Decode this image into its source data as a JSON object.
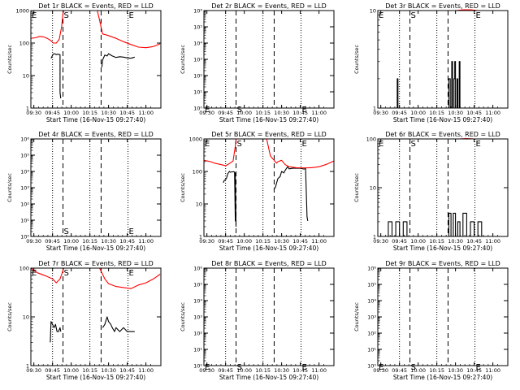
{
  "figure": {
    "start_time": "Start Time (16-Nov-15 09:27:40)",
    "ylabel": "Counts/sec",
    "x_ticks": [
      "09:30",
      "09:45",
      "10:00",
      "10:15",
      "10:30",
      "10:45",
      "11:00"
    ],
    "x_tick_hours": [
      9.5,
      9.75,
      10.0,
      10.25,
      10.5,
      10.75,
      11.0
    ],
    "x_range": [
      9.46,
      11.2
    ],
    "dotted_lines_hours": [
      9.75,
      10.25,
      10.76
    ],
    "dashed_lines_hours": [
      9.89,
      10.4
    ],
    "colors": {
      "events": "#000000",
      "lld": "#ff0000",
      "axes": "#000000"
    }
  },
  "chart_data": [
    {
      "id": "det-1r",
      "type": "line",
      "title": "Det 1r BLACK = Events, RED = LLD",
      "xlabel": "Start Time (16-Nov-15 09:27:40)",
      "ylabel": "Counts/sec",
      "yscale": "log",
      "ylim": [
        1,
        1000
      ],
      "y_ticks": [
        "1",
        "10",
        "100",
        "1000"
      ],
      "markers": [
        {
          "label": "E",
          "x": 9.46,
          "y": 1000
        },
        {
          "label": "S",
          "x": 9.89,
          "y": 1000
        },
        {
          "label": "E",
          "x": 10.76,
          "y": 1000
        }
      ],
      "series": [
        {
          "name": "Events",
          "color": "#000000",
          "x": [
            9.73,
            9.75,
            9.76,
            9.78,
            9.8,
            9.82,
            9.83,
            9.85,
            9.85,
            9.86
          ],
          "y": [
            34,
            42,
            46,
            47,
            44,
            46,
            45,
            44,
            3,
            2
          ]
        },
        {
          "name": "Events",
          "color": "#000000",
          "x": [
            10.41,
            10.42,
            10.45,
            10.48,
            10.5,
            10.55,
            10.6,
            10.65,
            10.7,
            10.75,
            10.8,
            10.85
          ],
          "y": [
            18,
            30,
            43,
            40,
            47,
            40,
            36,
            38,
            37,
            35,
            34,
            37
          ]
        },
        {
          "name": "LLD",
          "color": "#ff0000",
          "x": [
            9.46,
            9.52,
            9.58,
            9.63,
            9.68,
            9.73,
            9.76,
            9.8,
            9.84,
            9.87,
            9.89,
            9.9
          ],
          "y": [
            140,
            145,
            160,
            155,
            140,
            118,
            100,
            100,
            130,
            300,
            800,
            1000
          ]
        },
        {
          "name": "LLD",
          "color": "#ff0000",
          "x": [
            10.35,
            10.38,
            10.42,
            10.5,
            10.6,
            10.7,
            10.8,
            10.9,
            11.0,
            11.1,
            11.19
          ],
          "y": [
            1000,
            500,
            190,
            170,
            140,
            110,
            90,
            75,
            72,
            78,
            95
          ]
        }
      ]
    },
    {
      "id": "det-2r",
      "type": "line",
      "title": "Det 2r BLACK = Events, RED = LLD",
      "xlabel": "Start Time (16-Nov-15 09:27:40)",
      "ylabel": "Counts/sec",
      "yscale": "log",
      "ylim": [
        1,
        1000000
      ],
      "y_ticks": [
        "10⁰",
        "10¹",
        "10²",
        "10³",
        "10⁴",
        "10⁵",
        "10⁶"
      ],
      "markers": [
        {
          "label": "E",
          "x": 9.46,
          "y": 1.6
        },
        {
          "label": "S",
          "x": 9.89,
          "y": 1.6
        },
        {
          "label": "E",
          "x": 10.76,
          "y": 1.6
        }
      ],
      "series": []
    },
    {
      "id": "det-3r",
      "type": "line",
      "title": "Det 3r BLACK = Events, RED = LLD",
      "xlabel": "Start Time (16-Nov-15 09:27:40)",
      "ylabel": "Counts/sec",
      "yscale": "log",
      "ylim": [
        1,
        10
      ],
      "y_ticks": [
        "1",
        "10"
      ],
      "markers": [
        {
          "label": "E",
          "x": 9.46,
          "y": 10
        },
        {
          "label": "S",
          "x": 9.89,
          "y": 10
        },
        {
          "label": "E",
          "x": 10.76,
          "y": 10
        }
      ],
      "series": [
        {
          "name": "Events",
          "color": "#000000",
          "x": [
            9.72,
            9.72,
            9.73,
            9.73
          ],
          "y": [
            1,
            2,
            2,
            1
          ]
        },
        {
          "name": "Events",
          "color": "#000000",
          "x": [
            10.41,
            10.41,
            10.43,
            10.43,
            10.45,
            10.45,
            10.46,
            10.46,
            10.48,
            10.48,
            10.49,
            10.49,
            10.5,
            10.5,
            10.52,
            10.52,
            10.53,
            10.53,
            10.55,
            10.55,
            10.56,
            10.56
          ],
          "y": [
            1,
            2,
            2,
            1,
            1,
            3,
            3,
            1,
            1,
            2,
            2,
            3,
            3,
            1,
            1,
            2,
            2,
            1,
            1,
            3,
            3,
            1
          ]
        },
        {
          "name": "LLD",
          "color": "#ff0000",
          "x": [
            10.5,
            10.6,
            10.7,
            10.8
          ],
          "y": [
            10,
            10.2,
            10.2,
            10
          ]
        }
      ]
    },
    {
      "id": "det-4r",
      "type": "line",
      "title": "Det 4r BLACK = Events, RED = LLD",
      "xlabel": "Start Time (16-Nov-15 09:27:40)",
      "ylabel": "Counts/sec",
      "yscale": "log",
      "ylim": [
        1,
        1000000
      ],
      "y_ticks": [
        "10⁰",
        "10¹",
        "10²",
        "10³",
        "10⁴",
        "10⁵",
        "10⁶"
      ],
      "markers": [
        {
          "label": "S",
          "x": 9.89,
          "y": 4
        },
        {
          "label": "E",
          "x": 10.76,
          "y": 4
        }
      ],
      "series": []
    },
    {
      "id": "det-5r",
      "type": "line",
      "title": "Det 5r BLACK = Events, RED = LLD",
      "xlabel": "Start Time (16-Nov-15 09:27:40)",
      "ylabel": "Counts/sec",
      "yscale": "log",
      "ylim": [
        1,
        1000
      ],
      "y_ticks": [
        "1",
        "10",
        "100",
        "1000"
      ],
      "markers": [
        {
          "label": "E",
          "x": 9.46,
          "y": 1000
        },
        {
          "label": "S",
          "x": 9.89,
          "y": 1000
        },
        {
          "label": "E",
          "x": 10.76,
          "y": 1000
        }
      ],
      "series": [
        {
          "name": "Events",
          "color": "#000000",
          "x": [
            9.72,
            9.73,
            9.76,
            9.78,
            9.8,
            9.81,
            9.84,
            9.86,
            9.87,
            9.88,
            9.88,
            9.89
          ],
          "y": [
            45,
            52,
            60,
            85,
            100,
            95,
            97,
            98,
            95,
            3,
            90,
            2
          ]
        },
        {
          "name": "Events",
          "color": "#000000",
          "x": [
            10.41,
            10.42,
            10.45,
            10.48,
            10.5,
            10.53,
            10.55,
            10.58,
            10.6,
            10.65,
            10.7,
            10.75,
            10.8,
            10.82,
            10.84,
            10.85
          ],
          "y": [
            30,
            35,
            60,
            70,
            100,
            90,
            110,
            140,
            120,
            125,
            125,
            125,
            118,
            122,
            4,
            3
          ]
        },
        {
          "name": "LLD",
          "color": "#ff0000",
          "x": [
            9.46,
            9.5,
            9.55,
            9.6,
            9.65,
            9.7,
            9.75,
            9.8,
            9.85,
            9.88,
            9.89,
            9.9
          ],
          "y": [
            220,
            210,
            200,
            180,
            170,
            160,
            150,
            175,
            210,
            600,
            1000,
            1000
          ]
        },
        {
          "name": "LLD",
          "color": "#ff0000",
          "x": [
            10.3,
            10.35,
            10.4,
            10.43,
            10.45,
            10.5,
            10.55,
            10.6,
            10.7,
            10.8,
            10.9,
            11.0,
            11.1,
            11.2
          ],
          "y": [
            1000,
            300,
            220,
            180,
            200,
            220,
            160,
            140,
            130,
            128,
            130,
            140,
            165,
            210
          ]
        }
      ]
    },
    {
      "id": "det-6r",
      "type": "line",
      "title": "Det 6r BLACK = Events, RED = LLD",
      "xlabel": "Start Time (16-Nov-15 09:27:40)",
      "ylabel": "Counts/sec",
      "yscale": "log",
      "ylim": [
        1,
        100
      ],
      "y_ticks": [
        "1",
        "10",
        "100"
      ],
      "markers": [
        {
          "label": "E",
          "x": 9.46,
          "y": 100
        },
        {
          "label": "S",
          "x": 9.89,
          "y": 100
        },
        {
          "label": "E",
          "x": 10.76,
          "y": 100
        }
      ],
      "series": [
        {
          "name": "Events",
          "color": "#000000",
          "x": [
            9.6,
            9.6,
            9.65,
            9.65,
            9.7,
            9.7,
            9.75,
            9.75,
            9.8,
            9.8,
            9.85,
            9.85
          ],
          "y": [
            1,
            2,
            2,
            1,
            1,
            2,
            2,
            1,
            1,
            2,
            2,
            1
          ]
        },
        {
          "name": "Events",
          "color": "#000000",
          "x": [
            10.41,
            10.41,
            10.44,
            10.44,
            10.47,
            10.47,
            10.5,
            10.5,
            10.53,
            10.53,
            10.56,
            10.56,
            10.6,
            10.6,
            10.65,
            10.65,
            10.7,
            10.7,
            10.75,
            10.75,
            10.8,
            10.8,
            10.85,
            10.85
          ],
          "y": [
            1,
            3,
            3,
            1,
            1,
            3,
            3,
            1,
            1,
            2,
            2,
            1,
            1,
            3,
            3,
            1,
            1,
            2,
            2,
            1,
            1,
            2,
            2,
            1
          ]
        },
        {
          "name": "LLD",
          "color": "#ff0000",
          "x": [
            10.55,
            10.65,
            10.75
          ],
          "y": [
            100,
            102,
            100
          ]
        }
      ]
    },
    {
      "id": "det-7r",
      "type": "line",
      "title": "Det 7r BLACK = Events, RED = LLD",
      "xlabel": "Start Time (16-Nov-15 09:27:40)",
      "ylabel": "Counts/sec",
      "yscale": "log",
      "ylim": [
        1,
        100
      ],
      "y_ticks": [
        "1",
        "10",
        "100"
      ],
      "markers": [
        {
          "label": "E",
          "x": 9.46,
          "y": 100
        },
        {
          "label": "S",
          "x": 9.89,
          "y": 100
        },
        {
          "label": "E",
          "x": 10.76,
          "y": 100
        }
      ],
      "series": [
        {
          "name": "Events",
          "color": "#000000",
          "x": [
            9.72,
            9.73,
            9.75,
            9.77,
            9.79,
            9.81,
            9.83,
            9.85,
            9.86
          ],
          "y": [
            3,
            8,
            7,
            6,
            7,
            5,
            5,
            6,
            5
          ]
        },
        {
          "name": "Events",
          "color": "#000000",
          "x": [
            10.42,
            10.45,
            10.48,
            10.5,
            10.53,
            10.55,
            10.58,
            10.6,
            10.65,
            10.7,
            10.75,
            10.8,
            10.85
          ],
          "y": [
            6,
            7,
            10,
            8,
            7,
            6,
            5,
            6,
            5,
            6,
            5,
            5,
            5
          ]
        },
        {
          "name": "LLD",
          "color": "#ff0000",
          "x": [
            9.46,
            9.55,
            9.65,
            9.75,
            9.8,
            9.85,
            9.88,
            9.9
          ],
          "y": [
            100,
            80,
            70,
            60,
            50,
            60,
            80,
            100
          ]
        },
        {
          "name": "LLD",
          "color": "#ff0000",
          "x": [
            10.38,
            10.45,
            10.5,
            10.6,
            10.7,
            10.8,
            10.9,
            11.0,
            11.1,
            11.19
          ],
          "y": [
            100,
            60,
            48,
            42,
            40,
            38,
            45,
            50,
            60,
            75
          ]
        }
      ]
    },
    {
      "id": "det-8r",
      "type": "line",
      "title": "Det 8r BLACK = Events, RED = LLD",
      "xlabel": "Start Time (16-Nov-15 09:27:40)",
      "ylabel": "Counts/sec",
      "yscale": "log",
      "ylim": [
        1,
        1000000
      ],
      "y_ticks": [
        "10⁰",
        "10¹",
        "10²",
        "10³",
        "10⁴",
        "10⁵",
        "10⁶"
      ],
      "markers": [
        {
          "label": "E",
          "x": 9.46,
          "y": 1.6
        },
        {
          "label": "S",
          "x": 9.89,
          "y": 1.6
        },
        {
          "label": "E",
          "x": 10.76,
          "y": 1.6
        }
      ],
      "series": []
    },
    {
      "id": "det-9r",
      "type": "line",
      "title": "Det 9r BLACK = Events, RED = LLD",
      "xlabel": "Start Time (16-Nov-15 09:27:40)",
      "ylabel": "Counts/sec",
      "yscale": "log",
      "ylim": [
        1,
        1000000
      ],
      "y_ticks": [
        "10⁰",
        "10¹",
        "10²",
        "10³",
        "10⁴",
        "10⁵",
        "10⁶"
      ],
      "markers": [
        {
          "label": "E",
          "x": 9.46,
          "y": 1.6
        },
        {
          "label": "S",
          "x": 9.89,
          "y": 1.6
        },
        {
          "label": "E",
          "x": 10.76,
          "y": 1.6
        }
      ],
      "series": []
    }
  ]
}
